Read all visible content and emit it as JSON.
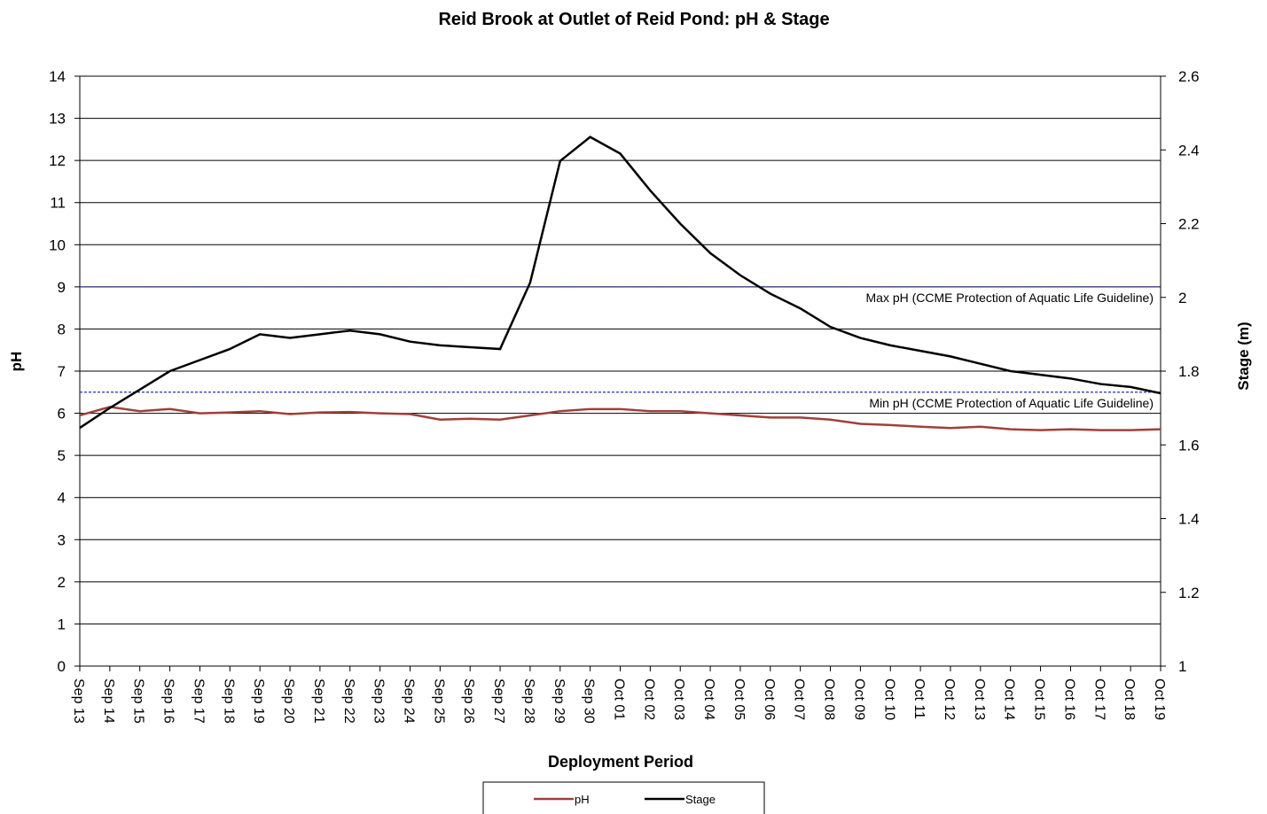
{
  "chart_data": {
    "type": "line",
    "title": "Reid Brook at Outlet of Reid Pond: pH & Stage",
    "x_label": "Deployment Period",
    "y_label": "pH",
    "y2_label": "Stage (m)",
    "categories": [
      "Sep 13",
      "Sep 14",
      "Sep 15",
      "Sep 16",
      "Sep 17",
      "Sep 18",
      "Sep 19",
      "Sep 20",
      "Sep 21",
      "Sep 22",
      "Sep 23",
      "Sep 24",
      "Sep 25",
      "Sep 26",
      "Sep 27",
      "Sep 28",
      "Sep 29",
      "Sep 30",
      "Oct 01",
      "Oct 02",
      "Oct 03",
      "Oct 04",
      "Oct 05",
      "Oct 06",
      "Oct 07",
      "Oct 08",
      "Oct 09",
      "Oct 10",
      "Oct 11",
      "Oct 12",
      "Oct 13",
      "Oct 14",
      "Oct 15",
      "Oct 16",
      "Oct 17",
      "Oct 18",
      "Oct 19"
    ],
    "series": [
      {
        "name": "pH",
        "color": "#a0403a",
        "axis": "y",
        "values": [
          5.95,
          6.15,
          6.05,
          6.1,
          6.0,
          6.02,
          6.05,
          5.98,
          6.02,
          6.03,
          6.0,
          5.98,
          5.85,
          5.87,
          5.85,
          5.95,
          6.05,
          6.1,
          6.1,
          6.05,
          6.05,
          6.0,
          5.95,
          5.9,
          5.9,
          5.85,
          5.75,
          5.72,
          5.68,
          5.65,
          5.68,
          5.62,
          5.6,
          5.62,
          5.6,
          5.6,
          5.62
        ]
      },
      {
        "name": "Stage",
        "color": "#000000",
        "axis": "y2",
        "values": [
          1.646,
          1.7,
          1.75,
          1.8,
          1.83,
          1.86,
          1.9,
          1.89,
          1.9,
          1.91,
          1.9,
          1.88,
          1.87,
          1.865,
          1.86,
          2.04,
          2.37,
          2.435,
          2.39,
          2.29,
          2.2,
          2.12,
          2.06,
          2.01,
          1.97,
          1.92,
          1.89,
          1.87,
          1.855,
          1.84,
          1.82,
          1.8,
          1.79,
          1.78,
          1.765,
          1.757,
          1.74
        ]
      }
    ],
    "ylim": [
      0,
      14
    ],
    "yticks": [
      0,
      1,
      2,
      3,
      4,
      5,
      6,
      7,
      8,
      9,
      10,
      11,
      12,
      13,
      14
    ],
    "y2lim": [
      1,
      2.6
    ],
    "y2ticks": [
      1,
      1.2,
      1.4,
      1.6,
      1.8,
      2,
      2.2,
      2.4,
      2.6
    ],
    "grid": true,
    "reference_lines": [
      {
        "value": 9,
        "label": "Max pH  (CCME  Protection of Aquatic Life Guideline)",
        "color": "#2233aa"
      },
      {
        "value": 6.5,
        "label": "Min pH  (CCME  Protection of Aquatic Life Guideline)",
        "color": "#2233aa"
      }
    ],
    "legend": "bottom"
  }
}
